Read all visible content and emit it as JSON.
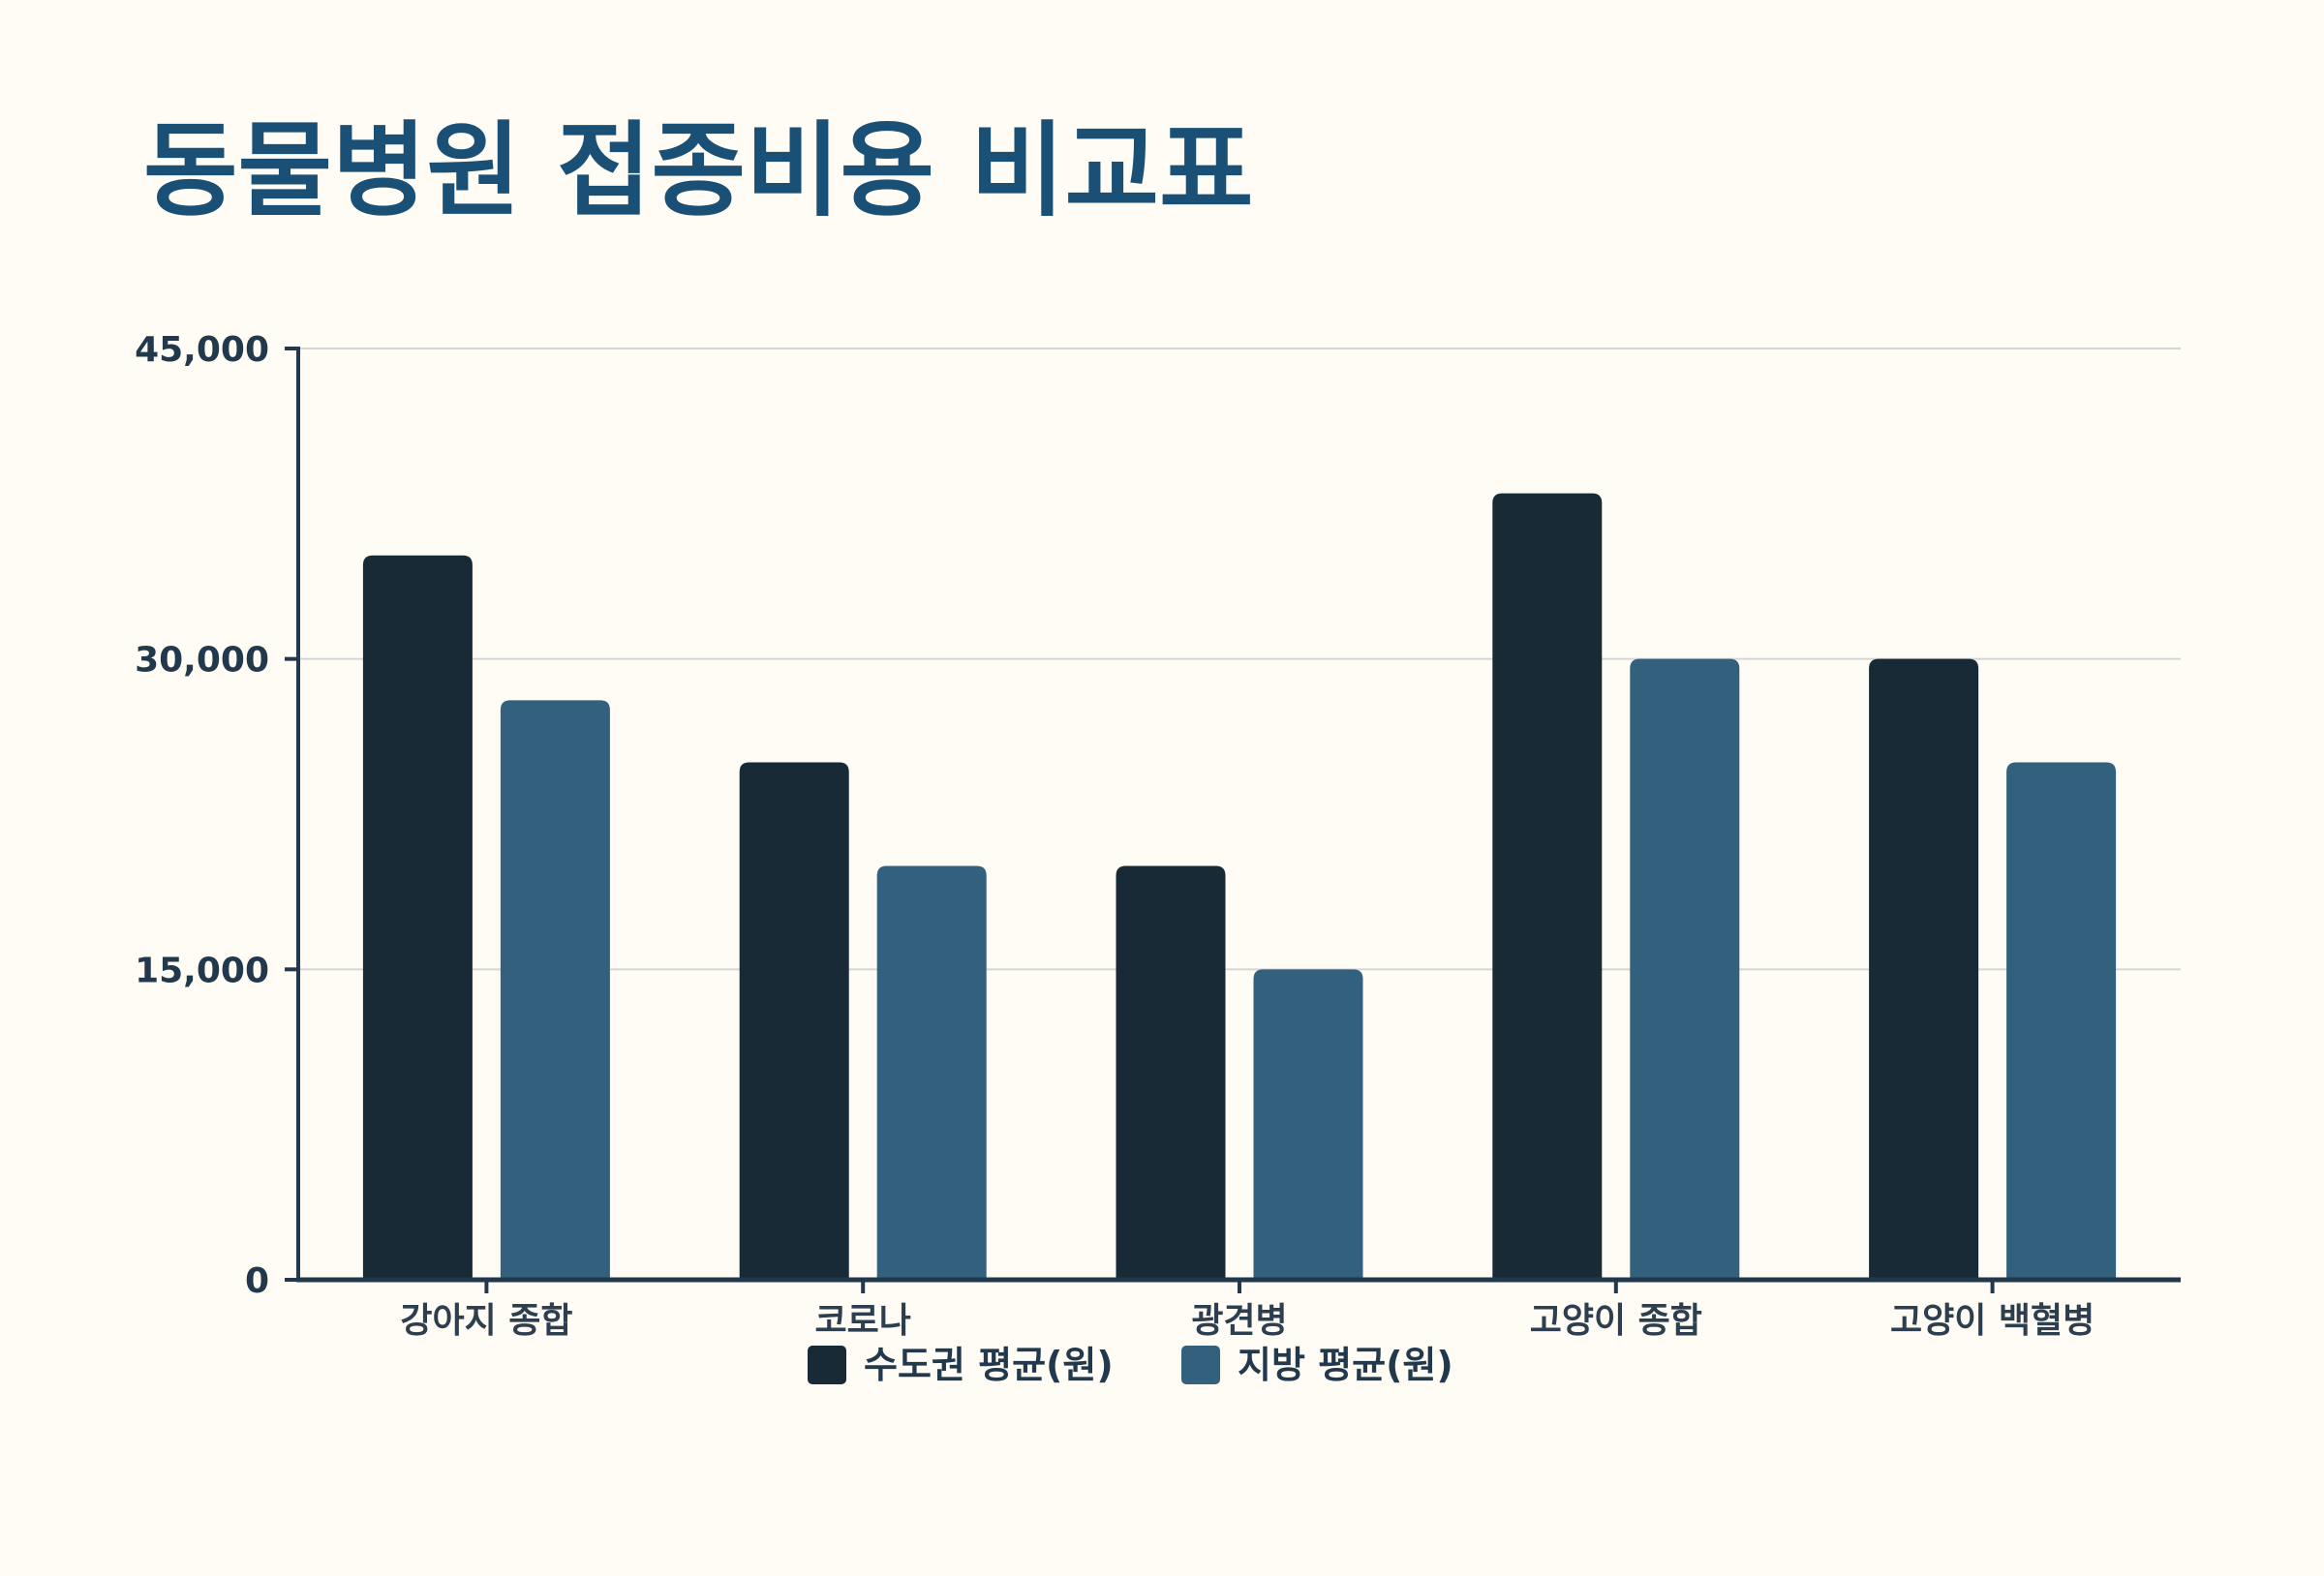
{
  "chart_data": {
    "type": "bar",
    "title": "동물병원 접종비용 비교표",
    "categories": [
      "강아지 종합",
      "코로나",
      "광견병",
      "고양이 종합",
      "고양이 백혈병"
    ],
    "series": [
      {
        "name": "수도권 평균(원)",
        "values": [
          35000,
          25000,
          20000,
          38000,
          30000
        ],
        "color": "#182a35"
      },
      {
        "name": "지방 평균(원)",
        "values": [
          28000,
          20000,
          15000,
          30000,
          25000
        ],
        "color": "#33607c"
      }
    ],
    "ylim": [
      0,
      45000
    ],
    "yticks": [
      "0",
      "15,000",
      "30,000",
      "45,000"
    ],
    "ytick_values": [
      0,
      15000,
      30000,
      45000
    ],
    "grid": true,
    "legend_position": "bottom-center",
    "colors": {
      "background": "#fffcf5",
      "title": "#1a5075",
      "axis": "#22384d",
      "grid": "#d3d6d7"
    }
  }
}
